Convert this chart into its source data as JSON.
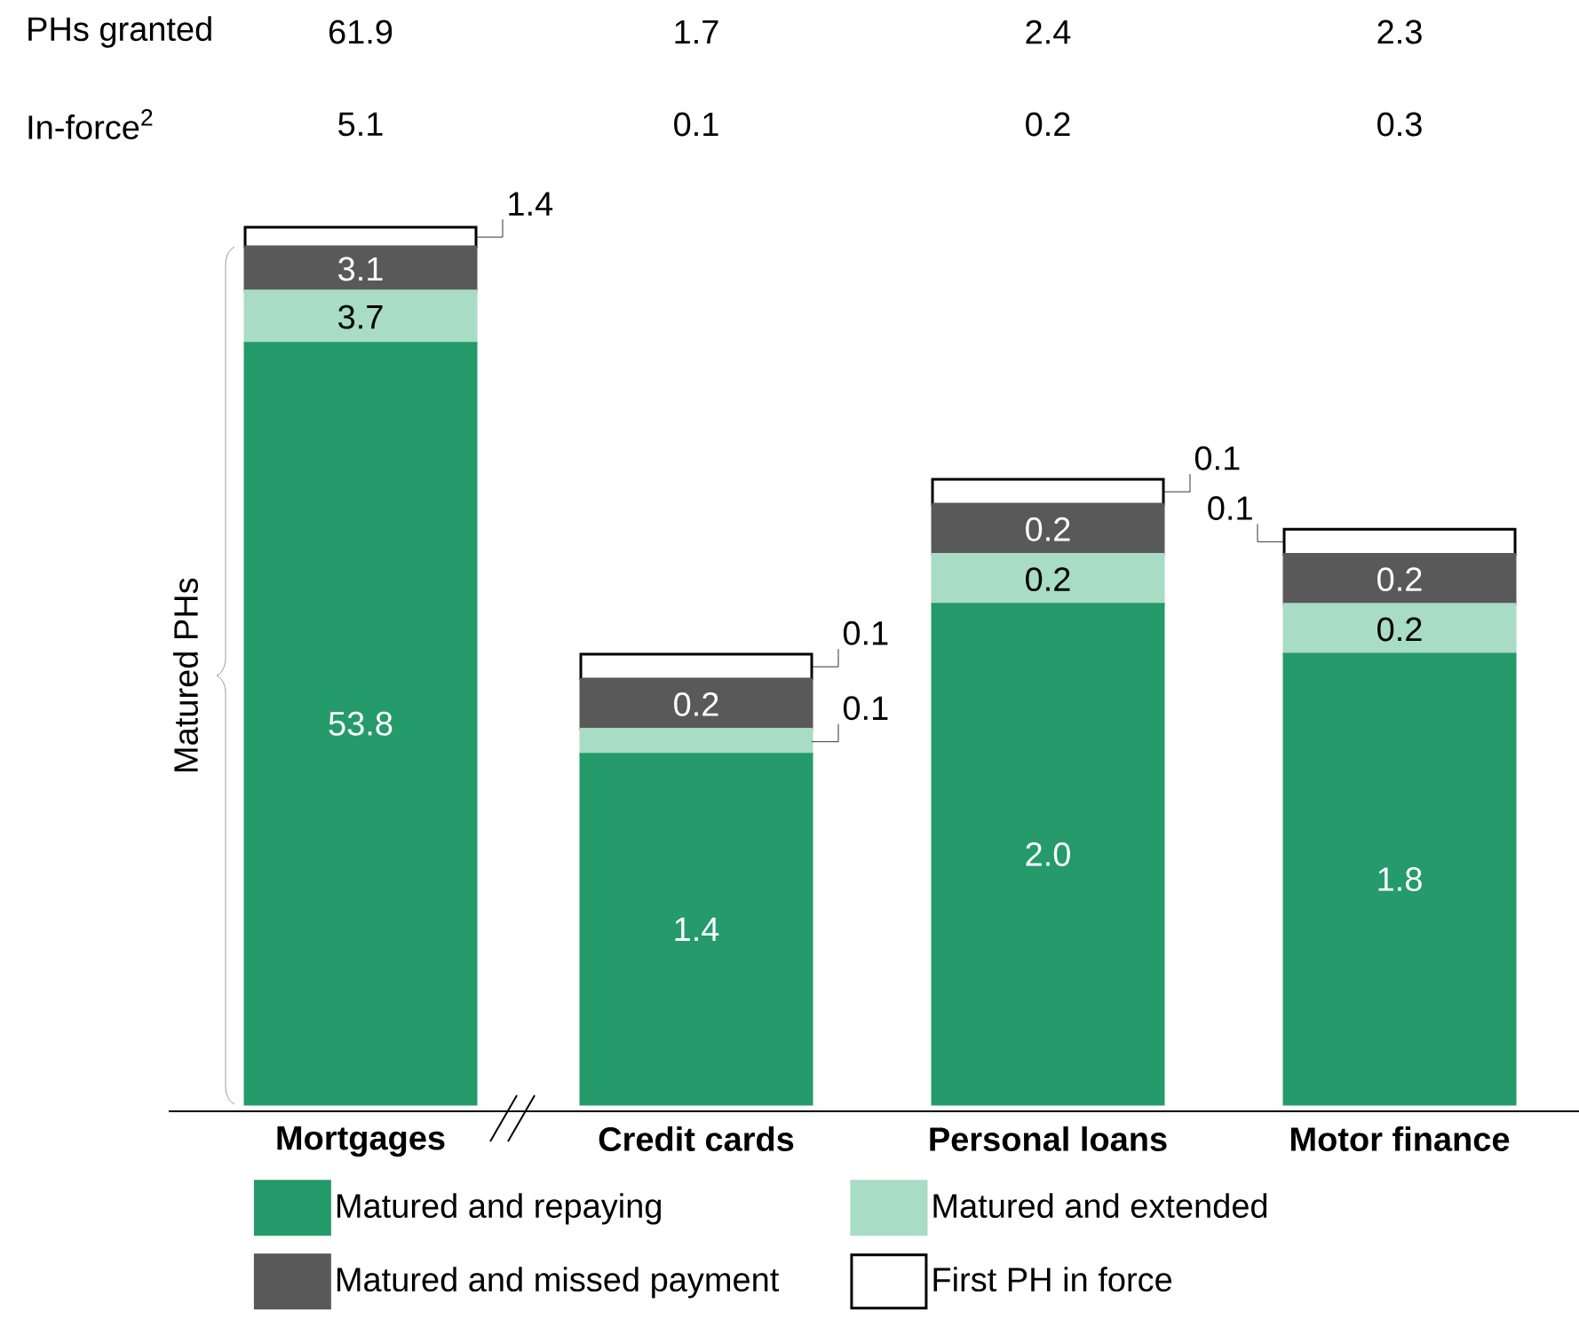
{
  "chart_data": [
    {
      "type": "bar",
      "stacked": true,
      "ylabel": "Matured PHs",
      "categories": [
        "Mortgages"
      ],
      "series": [
        {
          "color": "#259a6a",
          "values": [
            53.8
          ],
          "value_labels": [
            "53.8"
          ]
        },
        {
          "color": "#a8dcc4",
          "values": [
            3.7
          ],
          "value_labels": [
            "3.7"
          ]
        },
        {
          "color": "#595959",
          "values": [
            3.1
          ],
          "value_labels": [
            "3.1"
          ]
        },
        {
          "color": "#ffffff",
          "values": [
            1.4
          ],
          "value_labels": [
            "1.4"
          ]
        }
      ],
      "annotations": [
        "PHs granted",
        "In-force$^{2}$",
        "61.9",
        "5.1"
      ]
    },
    {
      "type": "bar",
      "stacked": true,
      "categories": [
        "Credit cards",
        "Personal loans",
        "Motor finance"
      ],
      "legend": "bottom",
      "series": [
        {
          "name": "Matured and repaying",
          "color": "#259a6a",
          "values": [
            1.4,
            2.0,
            1.8
          ],
          "value_labels": [
            "1.4",
            "2.0",
            "1.8"
          ]
        },
        {
          "name": "Matured and extended",
          "color": "#a8dcc4",
          "values": [
            0.1,
            0.2,
            0.2
          ],
          "value_labels": [
            "0.1",
            "0.2",
            "0.2"
          ]
        },
        {
          "name": "Matured and missed payment",
          "color": "#595959",
          "values": [
            0.2,
            0.2,
            0.2
          ],
          "value_labels": [
            "0.2",
            "0.2",
            "0.2"
          ]
        },
        {
          "name": "First PH in force",
          "color": "#ffffff",
          "values": [
            0.1,
            0.1,
            0.1
          ],
          "value_labels": [
            "0.1",
            "0.1",
            "0.1"
          ]
        }
      ],
      "annotations": [
        "1.7",
        "0.1",
        "2.4",
        "0.2",
        "2.3",
        "0.3"
      ]
    }
  ]
}
